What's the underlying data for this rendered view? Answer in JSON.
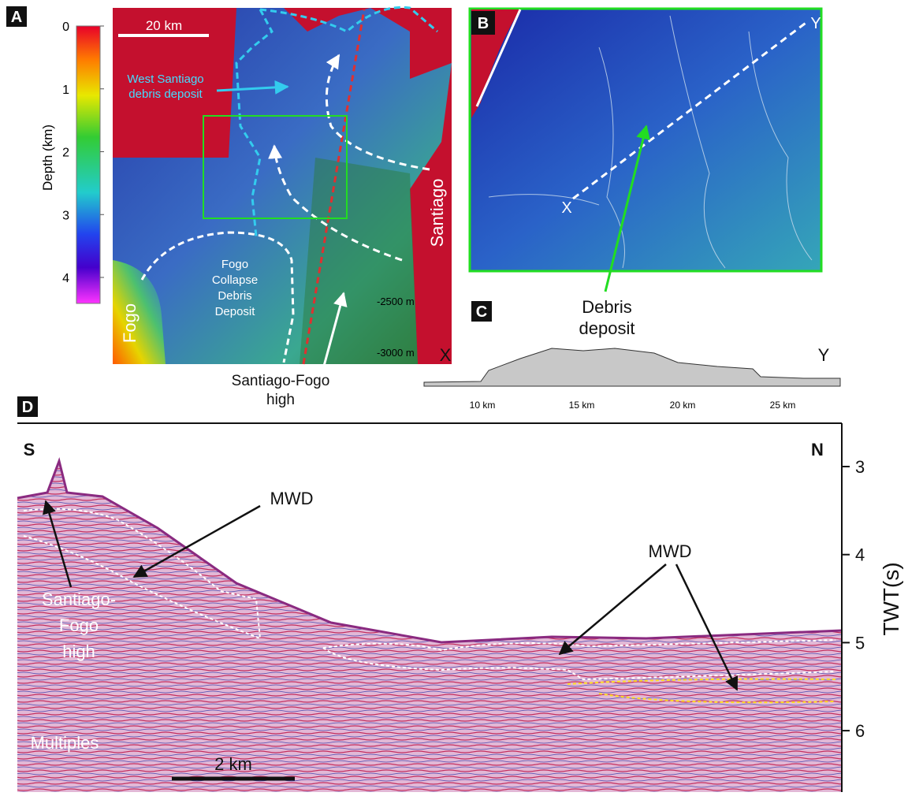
{
  "panel_a": {
    "label": "A",
    "colorbar": {
      "title": "Depth (km)",
      "ticks": [
        0,
        1,
        2,
        3,
        4
      ]
    },
    "scale_bar": "20 km",
    "annotations": {
      "west_santiago": [
        "West Santiago",
        "debris deposit"
      ],
      "santiago": "Santiago",
      "fogo": "Fogo",
      "fogo_collapse": [
        "Fogo",
        "Collapse",
        "Debris",
        "Deposit"
      ],
      "contour_2500": "-2500 m",
      "contour_3000": "-3000 m",
      "santiago_fogo_high": [
        "Santiago-Fogo",
        "high"
      ]
    }
  },
  "panel_b": {
    "label": "B",
    "start": "X",
    "end": "Y",
    "debris": [
      "Debris",
      "deposit"
    ]
  },
  "panel_c": {
    "label": "C",
    "start": "X",
    "end": "Y",
    "x_ticks": [
      "10 km",
      "15 km",
      "20 km",
      "25 km"
    ]
  },
  "panel_d": {
    "label": "D",
    "south": "S",
    "north": "N",
    "axis_title": "TWT(s)",
    "ticks": [
      3,
      4,
      5,
      6
    ],
    "mwd_left": "MWD",
    "mwd_right": "MWD",
    "santiago_fogo_high": [
      "Santiago-",
      "Fogo",
      "high"
    ],
    "multiples": "Multiples",
    "scale_bar": "2 km"
  }
}
